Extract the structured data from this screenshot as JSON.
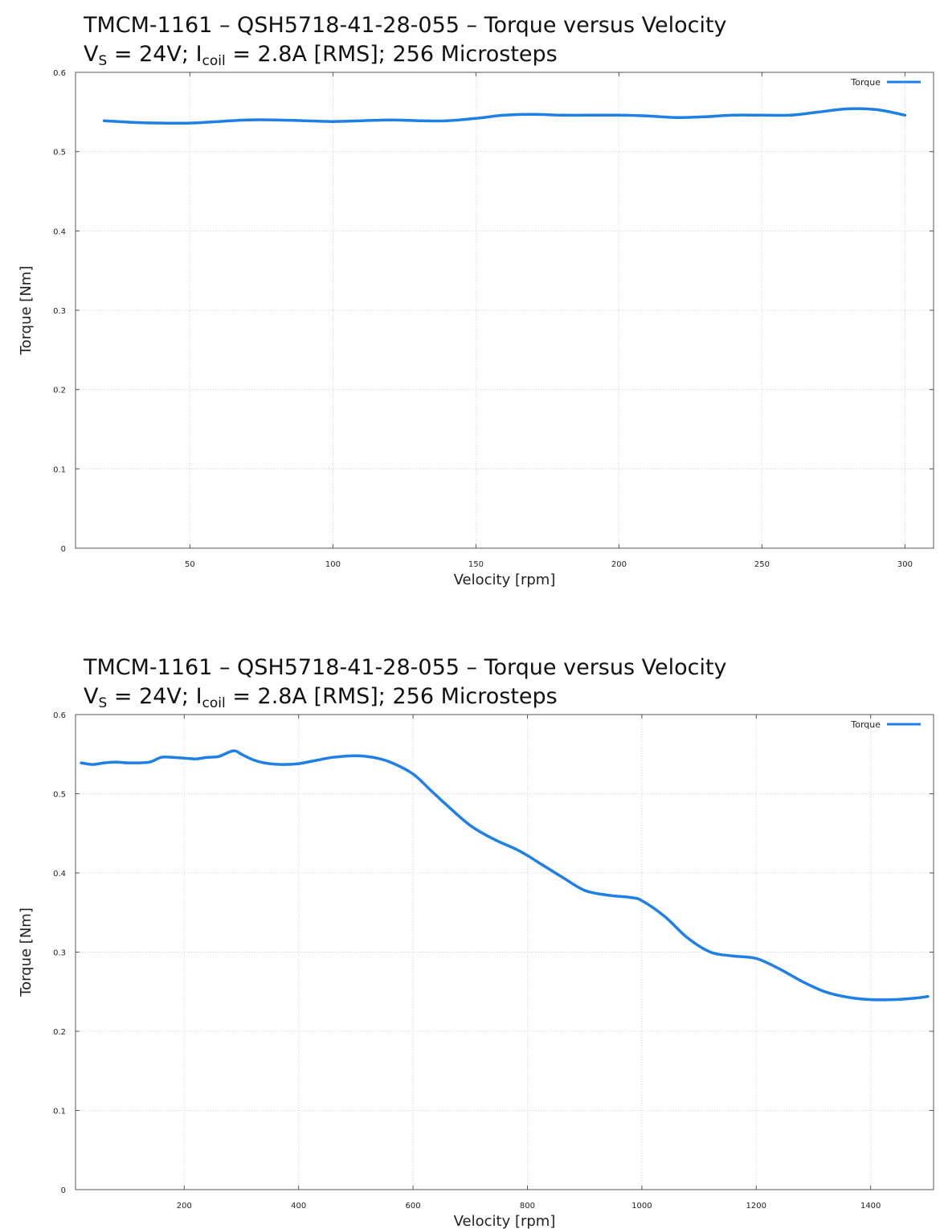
{
  "colors": {
    "series": "#1e7fe6"
  },
  "chart_data": [
    {
      "type": "line",
      "title_line1": "TMCM-1161 – QSH5718-41-28-055 – Torque versus Velocity",
      "title_line2": {
        "vs_main": "V",
        "vs_sub": "S",
        "vs_value": " = 24V; ",
        "icoil_main": "I",
        "icoil_sub": "coil",
        "icoil_value": " = 2.8A [RMS]; 256 Microsteps"
      },
      "xlabel": "Velocity [rpm]",
      "ylabel": "Torque [Nm]",
      "xlim": [
        10,
        310
      ],
      "ylim": [
        0,
        0.6
      ],
      "x_ticks": [
        50,
        100,
        150,
        200,
        250,
        300
      ],
      "x_tick_labels": [
        "50",
        "100",
        "150",
        "200",
        "250",
        "300"
      ],
      "y_ticks": [
        0,
        0.1,
        0.2,
        0.3,
        0.4,
        0.5,
        0.6
      ],
      "y_tick_labels": [
        "0",
        "0.1",
        "0.2",
        "0.3",
        "0.4",
        "0.5",
        "0.6"
      ],
      "grid": true,
      "legend_position": "top-right",
      "series": [
        {
          "name": "Torque",
          "x": [
            20,
            30,
            40,
            50,
            60,
            70,
            80,
            90,
            100,
            110,
            120,
            130,
            140,
            150,
            160,
            170,
            180,
            190,
            200,
            210,
            220,
            230,
            240,
            250,
            260,
            270,
            280,
            290,
            300
          ],
          "y": [
            0.539,
            0.537,
            0.536,
            0.536,
            0.538,
            0.54,
            0.54,
            0.539,
            0.538,
            0.539,
            0.54,
            0.539,
            0.539,
            0.542,
            0.546,
            0.547,
            0.546,
            0.546,
            0.546,
            0.545,
            0.543,
            0.544,
            0.546,
            0.546,
            0.546,
            0.55,
            0.554,
            0.553,
            0.546
          ]
        }
      ]
    },
    {
      "type": "line",
      "title_line1": "TMCM-1161 – QSH5718-41-28-055 – Torque versus Velocity",
      "title_line2": {
        "vs_main": "V",
        "vs_sub": "S",
        "vs_value": " = 24V; ",
        "icoil_main": "I",
        "icoil_sub": "coil",
        "icoil_value": " = 2.8A [RMS]; 256 Microsteps"
      },
      "xlabel": "Velocity [rpm]",
      "ylabel": "Torque [Nm]",
      "xlim": [
        10,
        1510
      ],
      "ylim": [
        0,
        0.6
      ],
      "x_ticks": [
        200,
        400,
        600,
        800,
        1000,
        1200,
        1400
      ],
      "x_tick_labels": [
        "200",
        "400",
        "600",
        "800",
        "1000",
        "1200",
        "1400"
      ],
      "y_ticks": [
        0,
        0.1,
        0.2,
        0.3,
        0.4,
        0.5,
        0.6
      ],
      "y_tick_labels": [
        "0",
        "0.1",
        "0.2",
        "0.3",
        "0.4",
        "0.5",
        "0.6"
      ],
      "grid": true,
      "legend_position": "top-right",
      "series": [
        {
          "name": "Torque",
          "x": [
            20,
            40,
            60,
            80,
            100,
            120,
            140,
            160,
            180,
            200,
            220,
            240,
            260,
            280,
            290,
            300,
            320,
            340,
            370,
            400,
            430,
            460,
            500,
            530,
            560,
            600,
            630,
            660,
            700,
            740,
            780,
            800,
            820,
            860,
            900,
            940,
            980,
            1000,
            1040,
            1080,
            1120,
            1160,
            1200,
            1240,
            1280,
            1320,
            1360,
            1400,
            1440,
            1480,
            1500
          ],
          "y": [
            0.539,
            0.537,
            0.539,
            0.54,
            0.539,
            0.539,
            0.54,
            0.546,
            0.546,
            0.545,
            0.544,
            0.546,
            0.547,
            0.553,
            0.554,
            0.55,
            0.543,
            0.539,
            0.537,
            0.538,
            0.542,
            0.546,
            0.548,
            0.546,
            0.54,
            0.525,
            0.505,
            0.485,
            0.46,
            0.443,
            0.43,
            0.422,
            0.413,
            0.395,
            0.378,
            0.372,
            0.369,
            0.365,
            0.345,
            0.318,
            0.3,
            0.295,
            0.292,
            0.279,
            0.263,
            0.25,
            0.243,
            0.24,
            0.24,
            0.242,
            0.244
          ]
        }
      ]
    }
  ]
}
